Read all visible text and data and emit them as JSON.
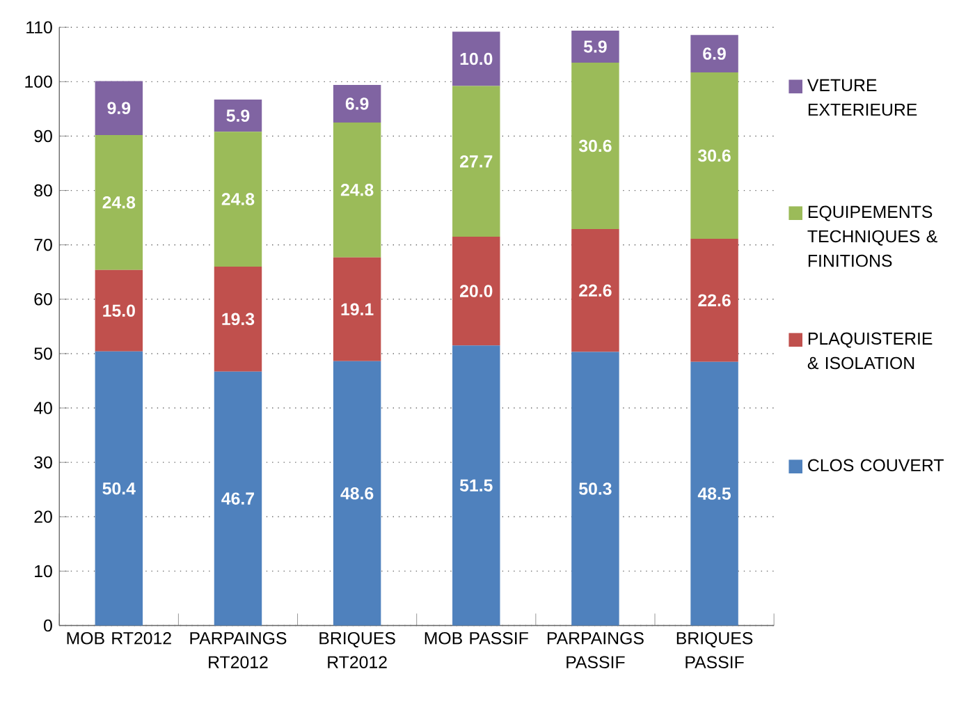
{
  "chart_data": {
    "type": "bar",
    "stacked": true,
    "categories": [
      "MOB RT2012",
      "PARPAINGS RT2012",
      "BRIQUES RT2012",
      "MOB PASSIF",
      "PARPAINGS PASSIF",
      "BRIQUES PASSIF"
    ],
    "series": [
      {
        "name": "CLOS COUVERT",
        "color": "#4f81bd",
        "values": [
          50.4,
          46.7,
          48.6,
          51.5,
          50.3,
          48.5
        ],
        "value_labels": [
          "50.4",
          "46.7",
          "48.6",
          "51.5",
          "50.3",
          "48.5"
        ]
      },
      {
        "name": "PLAQUISTERIE & ISOLATION",
        "color": "#c0504d",
        "values": [
          15.0,
          19.3,
          19.1,
          20.0,
          22.6,
          22.6
        ],
        "value_labels": [
          "15.0",
          "19.3",
          "19.1",
          "20.0",
          "22.6",
          "22.6"
        ]
      },
      {
        "name": "EQUIPEMENTS TECHNIQUES & FINITIONS",
        "color": "#9bbb59",
        "values": [
          24.8,
          24.8,
          24.8,
          27.7,
          30.6,
          30.6
        ],
        "value_labels": [
          "24.8",
          "24.8",
          "24.8",
          "27.7",
          "30.6",
          "30.6"
        ]
      },
      {
        "name": "VETURE EXTERIEURE",
        "color": "#8064a2",
        "values": [
          9.9,
          5.9,
          6.9,
          10.0,
          5.9,
          6.9
        ],
        "value_labels": [
          "9.9",
          "5.9",
          "6.9",
          "10.0",
          "5.9",
          "6.9"
        ]
      }
    ],
    "ylim": [
      0,
      110
    ],
    "yticks": [
      0,
      10,
      20,
      30,
      40,
      50,
      60,
      70,
      80,
      90,
      100,
      110
    ],
    "grid": "y",
    "legend": "right"
  }
}
